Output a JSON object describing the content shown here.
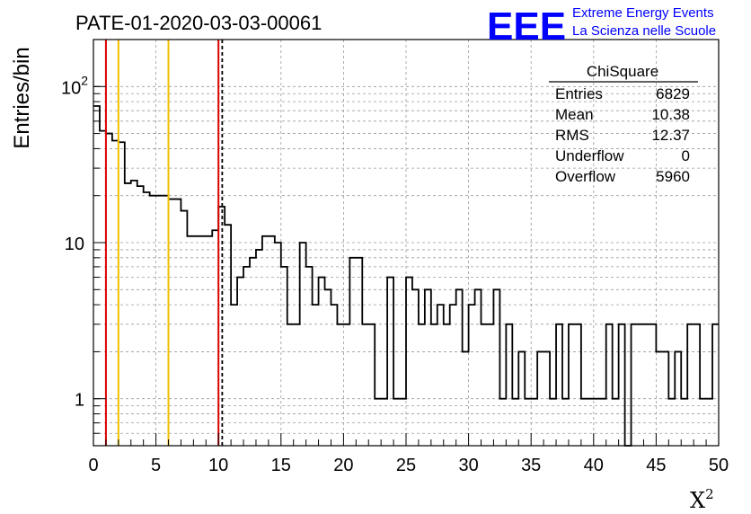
{
  "title": "PATE-01-2020-03-03-00061",
  "logo": {
    "mark": "EEE",
    "line1": "Extreme Energy Events",
    "line2": "La Scienza nelle Scuole",
    "color": "#0000ff"
  },
  "stats_box": {
    "name": "ChiSquare",
    "rows": [
      {
        "label": "Entries",
        "value": "6829"
      },
      {
        "label": "Mean",
        "value": "10.38"
      },
      {
        "label": "RMS",
        "value": "12.37"
      },
      {
        "label": "Underflow",
        "value": "0"
      },
      {
        "label": "Overflow",
        "value": "5960"
      }
    ]
  },
  "chart_data": {
    "type": "histogram",
    "xlabel": "X",
    "xlabel_superscript": "2",
    "ylabel": "Entries/bin",
    "xlim": [
      0,
      50
    ],
    "ylim": [
      0.5,
      200
    ],
    "yscale": "log",
    "grid": true,
    "bin_width": 0.5,
    "x_ticks": [
      "0",
      "5",
      "10",
      "15",
      "20",
      "25",
      "30",
      "35",
      "40",
      "45",
      "50"
    ],
    "y_ticks": [
      {
        "value": 1,
        "label": "1"
      },
      {
        "value": 10,
        "label": "10"
      },
      {
        "value": 100,
        "label": "10",
        "exponent": "2"
      }
    ],
    "bin_counts": [
      75,
      52,
      50,
      45,
      44,
      24,
      25,
      23,
      21,
      20,
      20,
      20,
      19,
      19,
      16,
      11,
      11,
      11,
      11,
      12,
      17,
      13,
      4,
      6,
      7,
      8,
      9,
      11,
      11,
      10,
      7,
      3,
      3,
      10,
      7,
      4,
      6,
      5,
      4,
      3,
      3,
      8,
      8,
      3,
      3,
      1,
      1,
      6,
      1,
      1,
      6,
      5,
      3,
      5,
      3,
      4,
      3,
      4,
      5,
      2,
      4,
      5,
      3,
      3,
      5,
      1,
      3,
      1,
      2,
      1,
      1,
      2,
      2,
      1,
      3,
      1,
      3,
      3,
      1,
      1,
      1,
      1,
      3,
      1,
      3,
      0.1,
      3,
      3,
      3,
      3,
      2,
      2,
      1,
      2,
      1,
      3,
      3,
      1,
      1,
      3
    ],
    "vertical_lines": [
      {
        "x": 1,
        "color": "#dd0000",
        "style": "solid"
      },
      {
        "x": 2,
        "color": "#f0c000",
        "style": "solid"
      },
      {
        "x": 6,
        "color": "#f0c000",
        "style": "solid"
      },
      {
        "x": 10,
        "color": "#dd0000",
        "style": "solid"
      },
      {
        "x": 10.3,
        "color": "#000000",
        "style": "dashed"
      }
    ]
  }
}
